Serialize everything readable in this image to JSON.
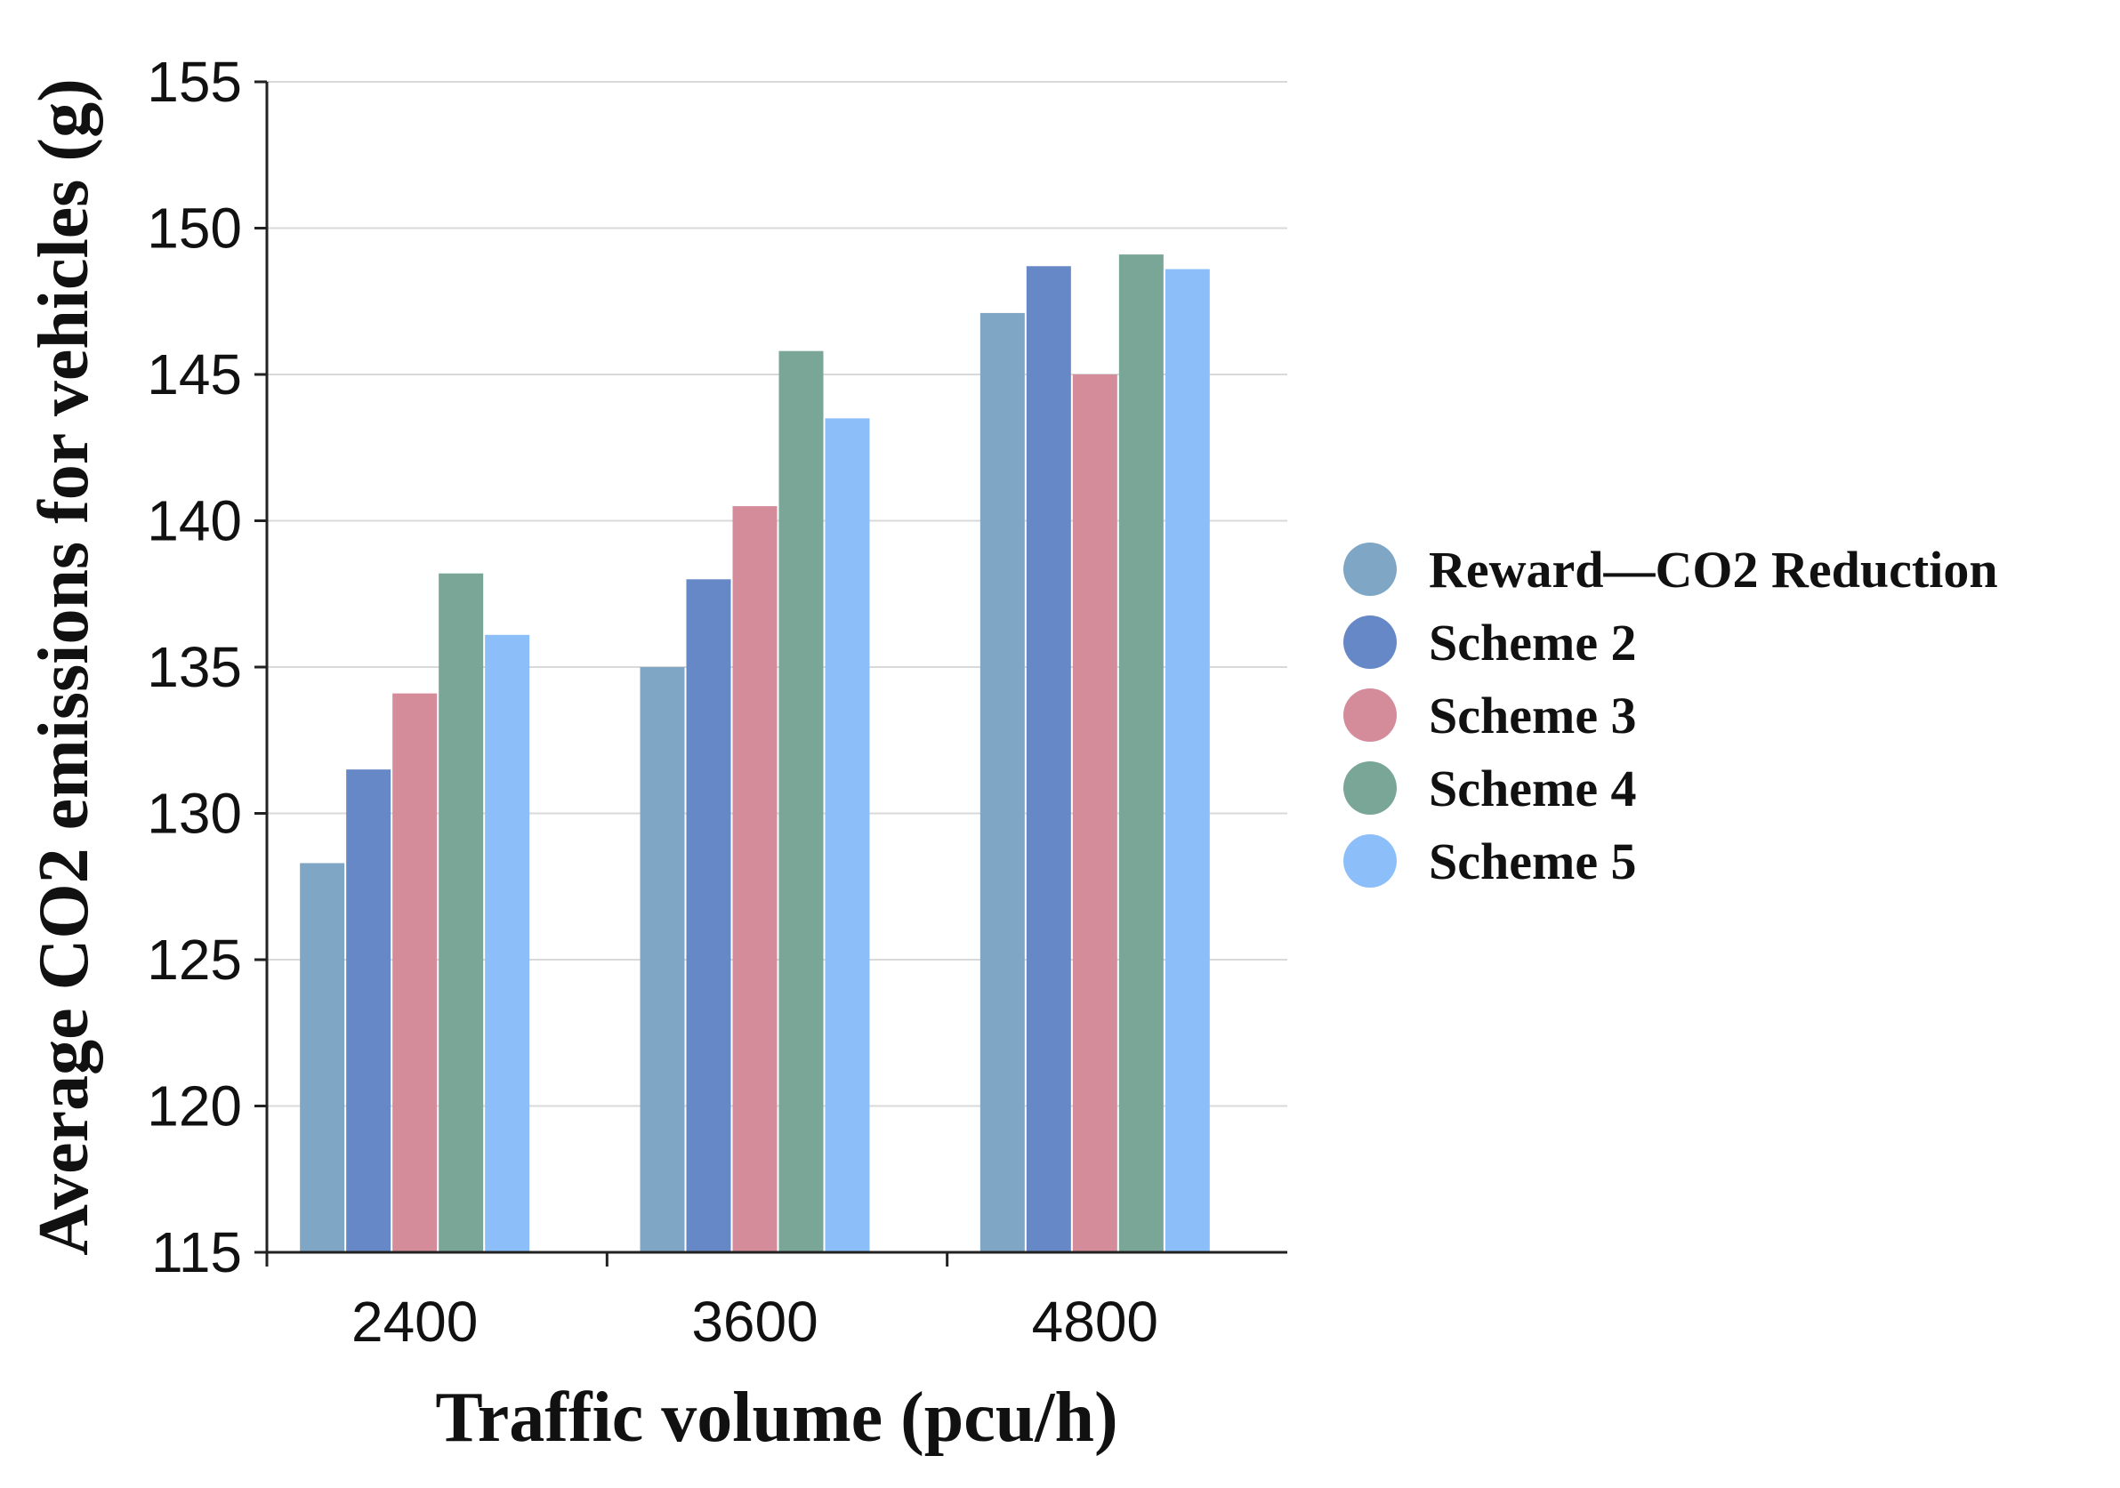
{
  "chart_data": {
    "type": "bar",
    "title": "",
    "xlabel": "Traffic volume (pcu/h)",
    "ylabel": "Average CO2 emissions for vehicles (g)",
    "ylim": [
      115,
      155
    ],
    "yticks": [
      115,
      120,
      125,
      130,
      135,
      140,
      145,
      150,
      155
    ],
    "grid": true,
    "legend_position": "right",
    "categories": [
      "2400",
      "3600",
      "4800"
    ],
    "series": [
      {
        "name": "Reward—CO2 Reduction",
        "color": "#7fa6c4",
        "values": [
          128.3,
          135.0,
          147.1
        ]
      },
      {
        "name": "Scheme 2",
        "color": "#6688c6",
        "values": [
          131.5,
          138.0,
          148.7
        ]
      },
      {
        "name": "Scheme 3",
        "color": "#d48c9b",
        "values": [
          134.1,
          140.5,
          145.0
        ]
      },
      {
        "name": "Scheme 4",
        "color": "#7aa698",
        "values": [
          138.2,
          145.8,
          149.1
        ]
      },
      {
        "name": "Scheme 5",
        "color": "#8cbffa",
        "values": [
          136.1,
          143.5,
          148.6
        ]
      }
    ]
  }
}
